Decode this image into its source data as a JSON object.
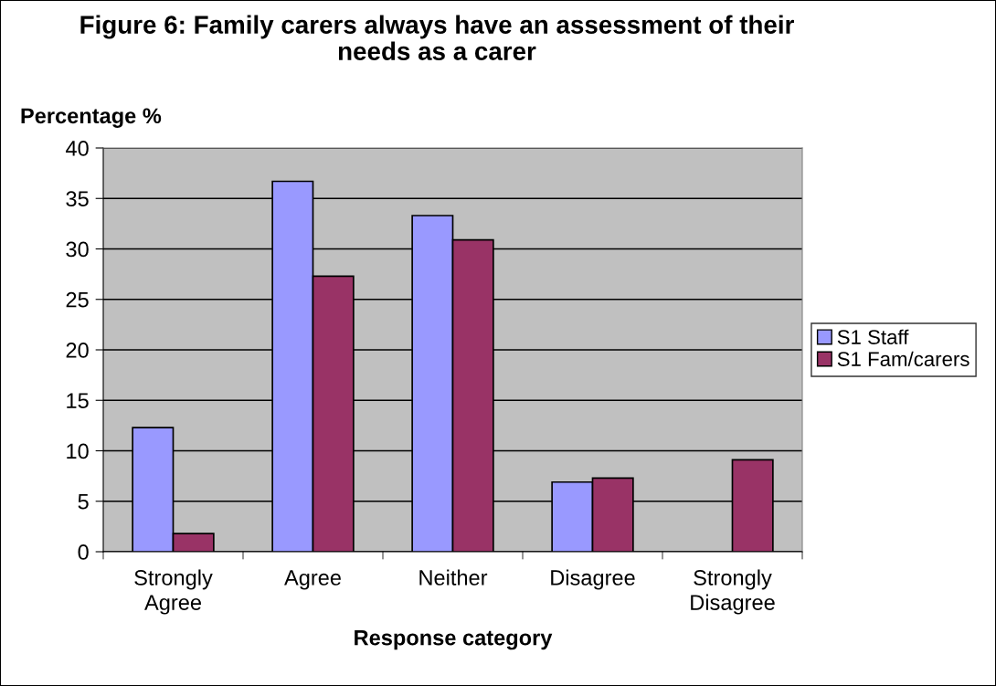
{
  "chart_data": {
    "type": "bar",
    "title": "Figure 6: Family carers always have an assessment of their\nneeds as a carer",
    "xlabel": "Response category",
    "ylabel": "Percentage %",
    "categories": [
      "Strongly\nAgree",
      "Agree",
      "Neither",
      "Disagree",
      "Strongly\nDisagree"
    ],
    "series": [
      {
        "name": "S1 Staff",
        "color": "#9999ff",
        "values": [
          12.3,
          36.7,
          33.3,
          6.9,
          null
        ]
      },
      {
        "name": "S1 Fam/carers",
        "color": "#993366",
        "values": [
          1.8,
          27.3,
          30.9,
          7.3,
          9.1
        ]
      }
    ],
    "ylim": [
      0,
      40
    ],
    "yticks": [
      0,
      5,
      10,
      15,
      20,
      25,
      30,
      35,
      40
    ],
    "grid": "y",
    "legend": "right"
  }
}
